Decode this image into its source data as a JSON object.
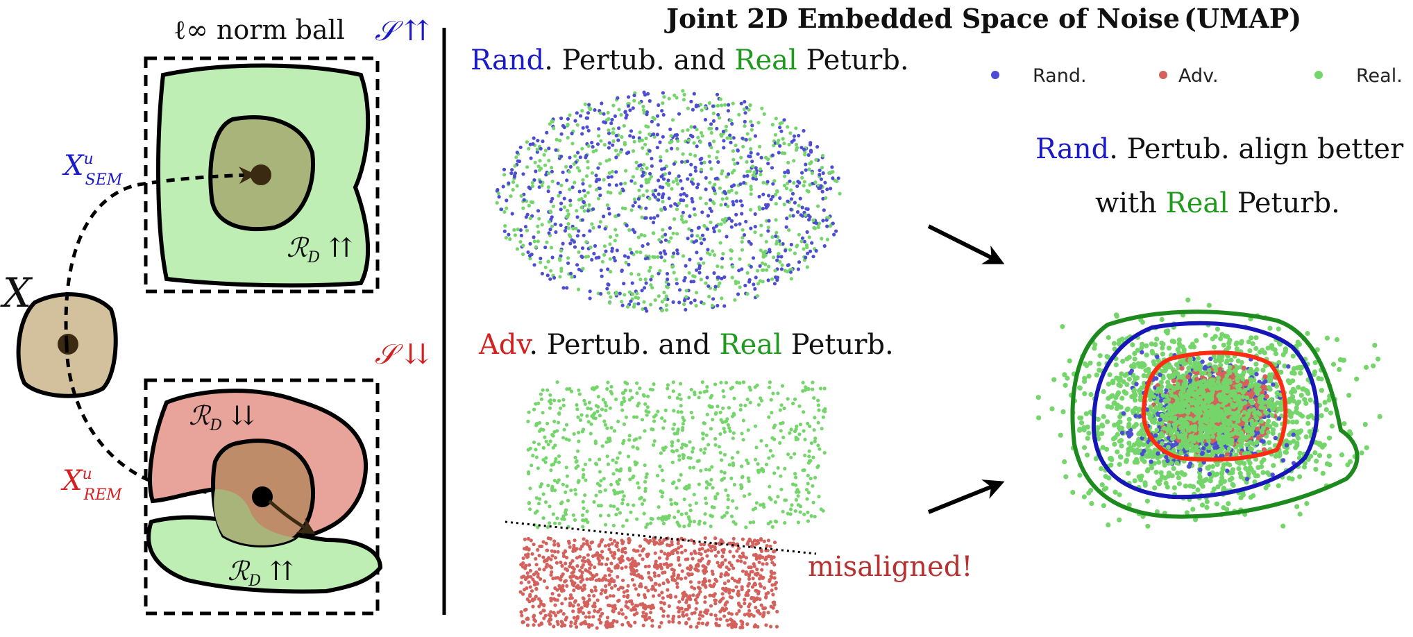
{
  "colors": {
    "rand": "#4d4dd4",
    "adv": "#d4615b",
    "real": "#74d66a",
    "blue_text": "#1a1ac8",
    "red_text": "#d42020",
    "green_text": "#1f9a1f",
    "green_fill": "#bfeeb5",
    "red_fill": "#e8a49b",
    "tan_fill": "#d2c19c",
    "olive_fill": "#a8b47a",
    "brown_fill": "#bf8c6a",
    "dark_dot": "#3a2a12",
    "contour_green": "#1c8a1c",
    "contour_blue": "#1515b8",
    "contour_red": "#ff2b12"
  },
  "left": {
    "ball_title": "ℓ∞ norm ball",
    "s_up": "𝒮 ⇈",
    "s_down": "𝒮 ⇊",
    "x_label": "X",
    "x_sem": "X",
    "x_sem_sup": "u",
    "x_sem_sub": "SEM",
    "x_rem": "X",
    "x_rem_sup": "u",
    "x_rem_sub": "REM",
    "rd_top": "ℛ",
    "rd_top_sub": "D",
    "rd_top_arrow": "⇈",
    "rd_red": "ℛ",
    "rd_red_sub": "D",
    "rd_red_arrow": "⇊",
    "rd_bottom": "ℛ",
    "rd_bottom_sub": "D",
    "rd_bottom_arrow": "⇈"
  },
  "title": "Joint 2D Embedded Space of Noise",
  "title_paren": "(UMAP)",
  "top_plot_title": {
    "p1": "Rand",
    "p2": ". Pertub. and ",
    "p3": "Real",
    "p4": " Peturb."
  },
  "bottom_plot_title": {
    "p1": "Adv",
    "p2": ". Pertub. and ",
    "p3": "Real",
    "p4": " Peturb."
  },
  "misaligned": "misaligned!",
  "legend": [
    {
      "label": "Rand.",
      "color": "#4d4dd4"
    },
    {
      "label": "Adv.",
      "color": "#d4615b"
    },
    {
      "label": "Real.",
      "color": "#74d66a"
    }
  ],
  "caption": {
    "l1a": "Rand",
    "l1b": ". Pertub. align better",
    "l2a": "with ",
    "l2b": "Real",
    "l2c": " Peturb."
  }
}
